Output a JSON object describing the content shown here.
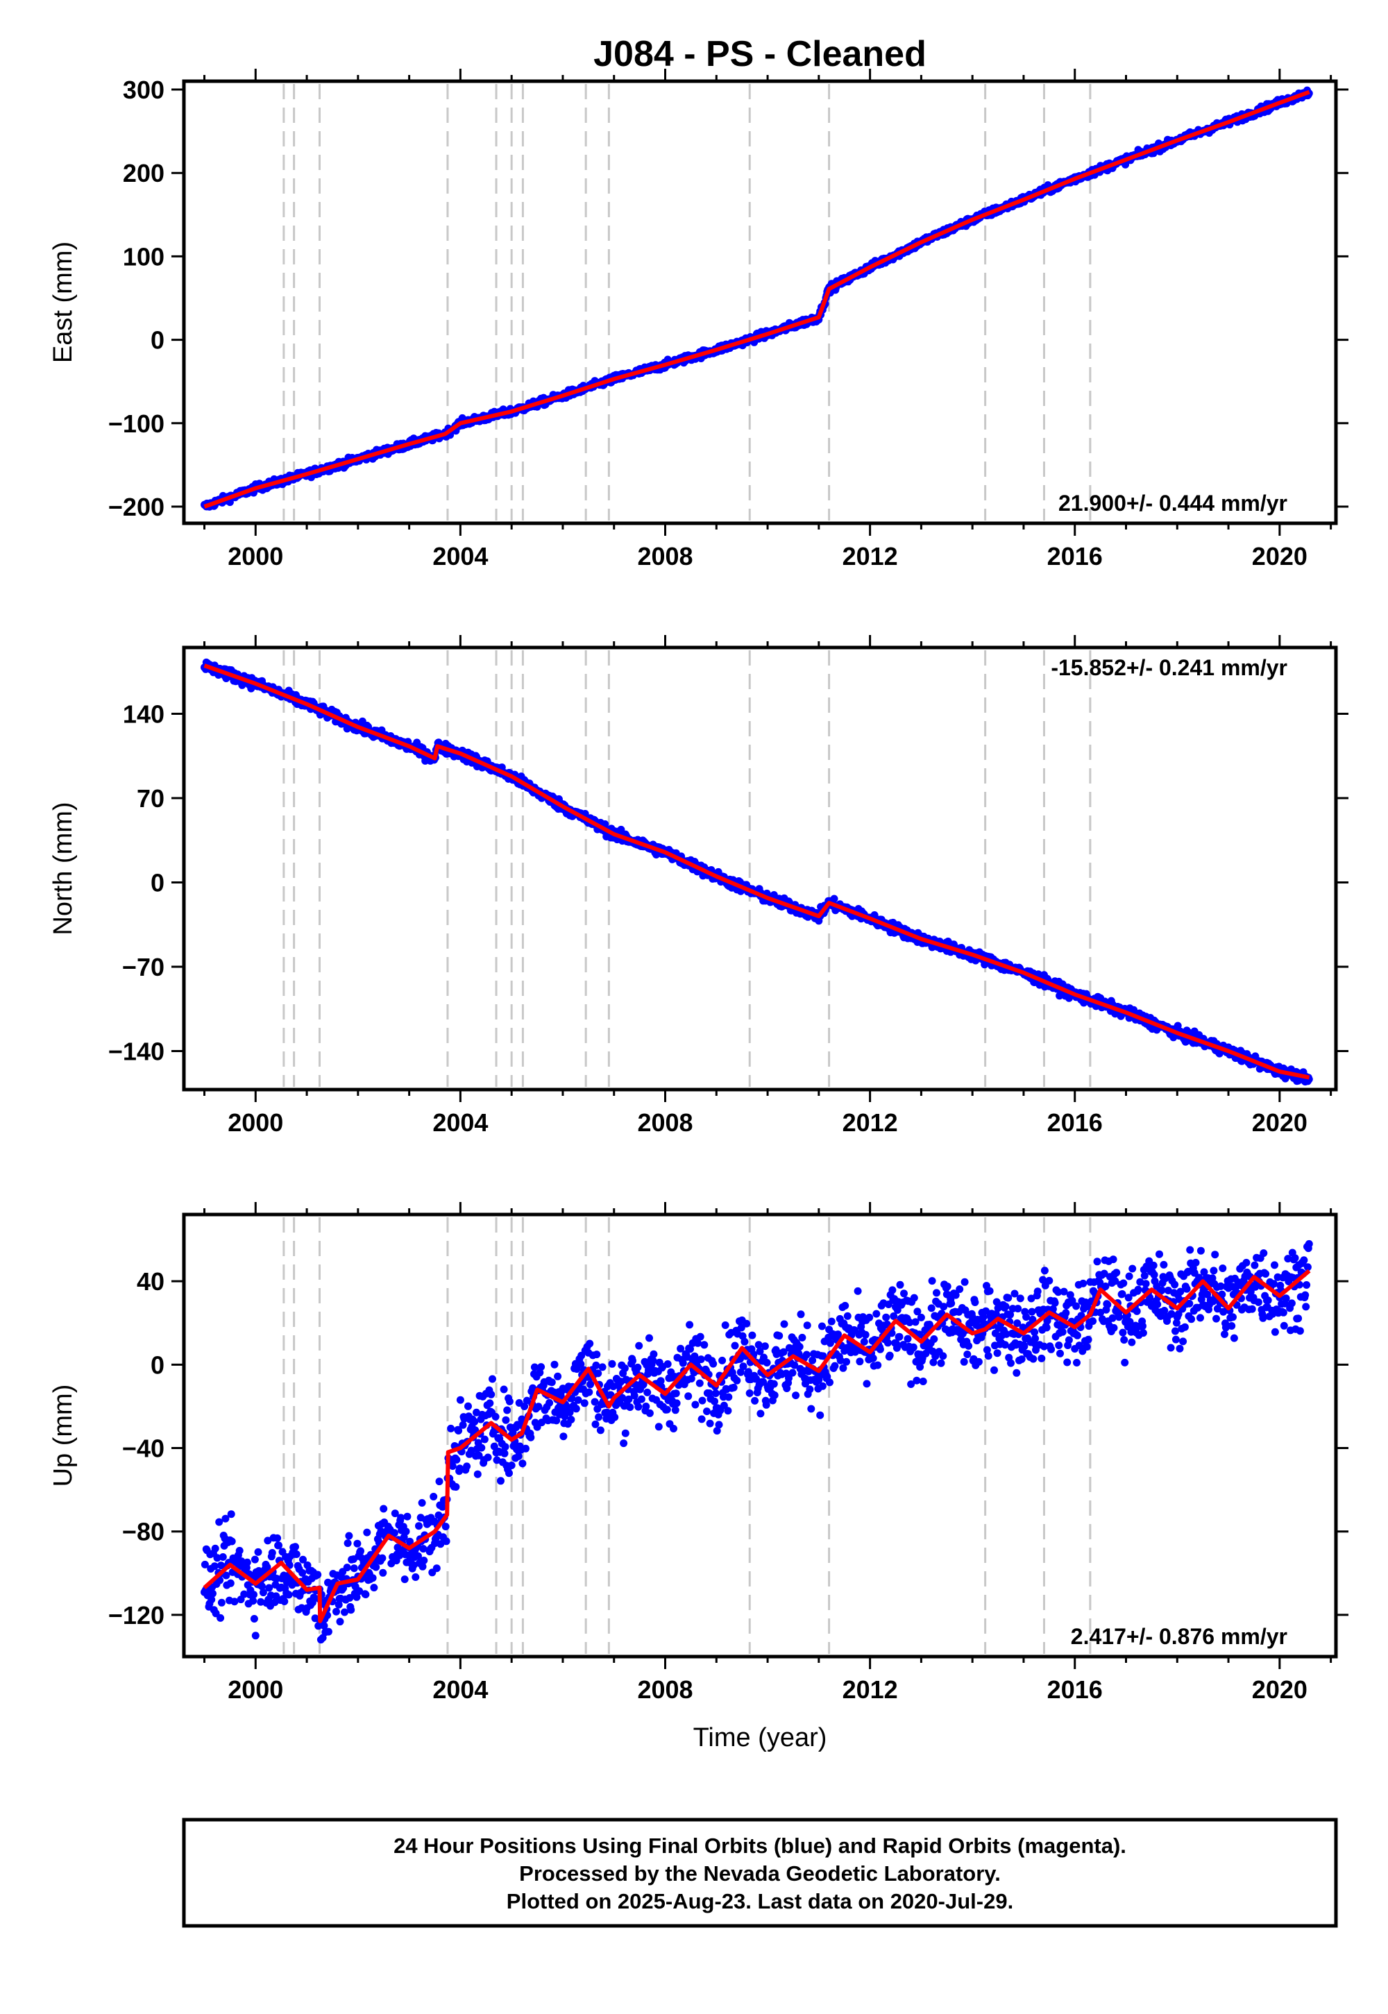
{
  "figure": {
    "title": "J084  - PS - Cleaned",
    "xlabel": "Time (year)",
    "footer": [
      "24 Hour Positions Using Final Orbits (blue) and Rapid Orbits (magenta).",
      "Processed by the Nevada Geodetic Laboratory.",
      "Plotted on 2025-Aug-23. Last data on 2020-Jul-29."
    ]
  },
  "colors": {
    "data": "#0000ff",
    "model": "#ff0000",
    "step_lines": "#c8c8c8"
  },
  "chart_data": [
    {
      "type": "scatter",
      "component": "East",
      "ylabel": "East (mm)",
      "xlim": [
        1998.6,
        2021.1
      ],
      "ylim": [
        -220,
        310
      ],
      "xticks": [
        2000,
        2004,
        2008,
        2012,
        2016,
        2020
      ],
      "yticks": [
        -200,
        -100,
        0,
        100,
        200,
        300
      ],
      "rate_label": "21.900+/- 0.444 mm/yr",
      "rate_position": "bottom-right",
      "step_years": [
        2000.55,
        2000.75,
        2001.25,
        2003.75,
        2004.7,
        2005.0,
        2005.22,
        2006.45,
        2006.9,
        2009.65,
        2011.2,
        2014.25,
        2015.4,
        2016.3
      ],
      "series": [
        {
          "style": "points",
          "x": [
            1999.0,
            2000.0,
            2001.0,
            2002.0,
            2003.0,
            2003.7,
            2004.0,
            2005.0,
            2006.0,
            2007.0,
            2008.0,
            2009.0,
            2010.0,
            2011.0,
            2011.2,
            2012.0,
            2013.0,
            2014.0,
            2015.0,
            2016.0,
            2017.0,
            2018.0,
            2019.0,
            2020.0,
            2020.58
          ],
          "y": [
            -200,
            -178,
            -161,
            -143,
            -125,
            -113,
            -100,
            -86,
            -67,
            -47,
            -30,
            -12,
            7,
            27,
            61,
            87,
            117,
            144,
            168,
            193,
            216,
            239,
            261,
            284,
            297
          ]
        },
        {
          "style": "model",
          "x": [
            1999.0,
            2000.0,
            2001.0,
            2002.0,
            2003.0,
            2003.7,
            2004.0,
            2005.0,
            2006.0,
            2007.0,
            2008.0,
            2009.0,
            2010.0,
            2011.0,
            2011.2,
            2012.0,
            2013.0,
            2014.0,
            2015.0,
            2016.0,
            2017.0,
            2018.0,
            2019.0,
            2020.0,
            2020.58
          ],
          "y": [
            -200,
            -178,
            -161,
            -143,
            -125,
            -113,
            -100,
            -86,
            -67,
            -47,
            -30,
            -12,
            7,
            27,
            61,
            87,
            117,
            144,
            168,
            193,
            216,
            239,
            261,
            284,
            297
          ]
        }
      ]
    },
    {
      "type": "scatter",
      "component": "North",
      "ylabel": "North (mm)",
      "xlim": [
        1998.6,
        2021.1
      ],
      "ylim": [
        -172,
        195
      ],
      "xticks": [
        2000,
        2004,
        2008,
        2012,
        2016,
        2020
      ],
      "yticks": [
        -140,
        -70,
        0,
        70,
        140
      ],
      "rate_label": "-15.852+/- 0.241 mm/yr",
      "rate_position": "top-right",
      "step_years": [
        2000.55,
        2000.75,
        2001.25,
        2003.75,
        2004.7,
        2005.0,
        2005.22,
        2006.45,
        2006.9,
        2009.65,
        2011.2,
        2014.25,
        2015.4,
        2016.3
      ],
      "series": [
        {
          "style": "points",
          "x": [
            1999.0,
            2000.0,
            2001.0,
            2002.0,
            2003.0,
            2003.5,
            2003.55,
            2004.0,
            2005.0,
            2006.0,
            2007.0,
            2008.0,
            2009.0,
            2010.0,
            2011.0,
            2011.2,
            2012.0,
            2013.0,
            2014.0,
            2015.0,
            2016.0,
            2017.0,
            2018.0,
            2019.0,
            2020.0,
            2020.58
          ],
          "y": [
            180,
            165,
            148,
            129,
            113,
            103,
            113,
            107,
            88,
            63,
            40,
            25,
            5,
            -13,
            -28,
            -17,
            -30,
            -47,
            -60,
            -75,
            -93,
            -108,
            -125,
            -140,
            -157,
            -162
          ]
        },
        {
          "style": "model",
          "x": [
            1999.0,
            2000.0,
            2001.0,
            2002.0,
            2003.0,
            2003.5,
            2003.55,
            2004.0,
            2005.0,
            2006.0,
            2007.0,
            2008.0,
            2009.0,
            2010.0,
            2011.0,
            2011.2,
            2012.0,
            2013.0,
            2014.0,
            2015.0,
            2016.0,
            2017.0,
            2018.0,
            2019.0,
            2020.0,
            2020.58
          ],
          "y": [
            180,
            165,
            148,
            129,
            113,
            103,
            113,
            107,
            88,
            63,
            40,
            25,
            5,
            -13,
            -28,
            -17,
            -30,
            -47,
            -60,
            -75,
            -93,
            -108,
            -125,
            -140,
            -157,
            -162
          ]
        }
      ]
    },
    {
      "type": "scatter",
      "component": "Up",
      "ylabel": "Up (mm)",
      "xlim": [
        1998.6,
        2021.1
      ],
      "ylim": [
        -140,
        72
      ],
      "xticks": [
        2000,
        2004,
        2008,
        2012,
        2016,
        2020
      ],
      "yticks": [
        -120,
        -80,
        -40,
        0,
        40
      ],
      "rate_label": "2.417+/- 0.876 mm/yr",
      "rate_position": "bottom-right",
      "step_years": [
        2000.55,
        2000.75,
        2001.25,
        2003.75,
        2004.7,
        2005.0,
        2005.22,
        2006.45,
        2006.9,
        2009.65,
        2011.2,
        2014.25,
        2015.4,
        2016.3
      ],
      "series": [
        {
          "style": "points",
          "x": [
            1999.0,
            1999.5,
            2000.0,
            2000.5,
            2001.0,
            2001.25,
            2001.26,
            2001.6,
            2002.0,
            2002.6,
            2003.0,
            2003.5,
            2003.74,
            2003.76,
            2004.0,
            2004.6,
            2005.0,
            2005.2,
            2005.5,
            2006.0,
            2006.5,
            2006.9,
            2007.0,
            2007.5,
            2008.0,
            2008.5,
            2009.0,
            2009.5,
            2010.0,
            2010.5,
            2011.0,
            2011.5,
            2012.0,
            2012.5,
            2013.0,
            2013.5,
            2014.0,
            2014.25,
            2014.5,
            2015.0,
            2015.5,
            2016.0,
            2016.3,
            2016.5,
            2017.0,
            2017.5,
            2018.0,
            2018.5,
            2019.0,
            2019.5,
            2020.0,
            2020.58
          ],
          "y": [
            -107,
            -96,
            -105,
            -95,
            -108,
            -107,
            -123,
            -105,
            -103,
            -82,
            -88,
            -80,
            -72,
            -42,
            -40,
            -28,
            -36,
            -33,
            -12,
            -18,
            -2,
            -20,
            -16,
            -5,
            -14,
            0,
            -10,
            8,
            -5,
            4,
            -3,
            14,
            6,
            21,
            11,
            24,
            15,
            17,
            22,
            15,
            25,
            18,
            24,
            36,
            25,
            36,
            27,
            40,
            27,
            42,
            33,
            45
          ]
        },
        {
          "style": "model",
          "x": [
            1999.0,
            1999.5,
            2000.0,
            2000.5,
            2001.0,
            2001.25,
            2001.26,
            2001.6,
            2002.0,
            2002.6,
            2003.0,
            2003.5,
            2003.74,
            2003.76,
            2004.0,
            2004.6,
            2005.0,
            2005.2,
            2005.5,
            2006.0,
            2006.5,
            2006.9,
            2007.0,
            2007.5,
            2008.0,
            2008.5,
            2009.0,
            2009.5,
            2010.0,
            2010.5,
            2011.0,
            2011.5,
            2012.0,
            2012.5,
            2013.0,
            2013.5,
            2014.0,
            2014.25,
            2014.5,
            2015.0,
            2015.5,
            2016.0,
            2016.3,
            2016.5,
            2017.0,
            2017.5,
            2018.0,
            2018.5,
            2019.0,
            2019.5,
            2020.0,
            2020.58
          ],
          "y": [
            -107,
            -96,
            -105,
            -95,
            -108,
            -107,
            -123,
            -105,
            -103,
            -82,
            -88,
            -80,
            -72,
            -42,
            -40,
            -28,
            -36,
            -33,
            -12,
            -18,
            -2,
            -20,
            -16,
            -5,
            -14,
            0,
            -10,
            8,
            -5,
            4,
            -3,
            14,
            6,
            21,
            11,
            24,
            15,
            17,
            22,
            15,
            25,
            18,
            24,
            36,
            25,
            36,
            27,
            40,
            27,
            42,
            33,
            45
          ]
        }
      ]
    }
  ]
}
